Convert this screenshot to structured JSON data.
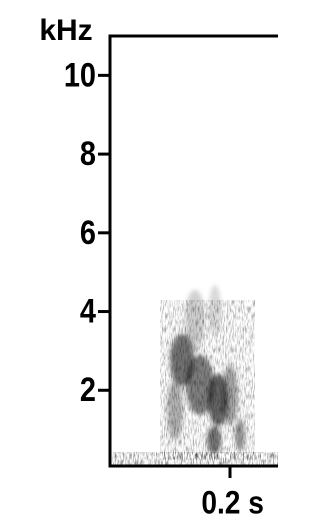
{
  "chart_data": {
    "type": "spectrogram",
    "y_label": "kHz",
    "ylim": [
      0,
      11
    ],
    "yticks": [
      2,
      4,
      6,
      8,
      10
    ],
    "xlim": [
      0,
      0.28
    ],
    "xticks": [
      {
        "value": 0.2,
        "label": "0.2 s"
      }
    ],
    "color": "#000000"
  }
}
